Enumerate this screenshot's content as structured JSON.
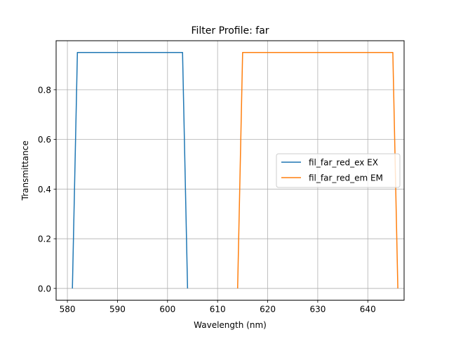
{
  "chart_data": {
    "type": "line",
    "title": "Filter Profile: far",
    "xlabel": "Wavelength (nm)",
    "ylabel": "Transmittance",
    "xlim": [
      577.75,
      647.25
    ],
    "ylim": [
      -0.0475,
      0.9975
    ],
    "xticks": [
      580,
      590,
      600,
      610,
      620,
      630,
      640
    ],
    "xtick_labels": [
      "580",
      "590",
      "600",
      "610",
      "620",
      "630",
      "640"
    ],
    "yticks": [
      0.0,
      0.2,
      0.4,
      0.6,
      0.8
    ],
    "ytick_labels": [
      "0.0",
      "0.2",
      "0.4",
      "0.6",
      "0.8"
    ],
    "grid": true,
    "legend_position": "center-right",
    "series": [
      {
        "name": "fil_far_red_ex EX",
        "color": "#1f77b4",
        "x": [
          581,
          582,
          603,
          604
        ],
        "y": [
          0.0,
          0.95,
          0.95,
          0.0
        ]
      },
      {
        "name": "fil_far_red_em EM",
        "color": "#ff7f0e",
        "x": [
          614,
          615,
          645,
          646
        ],
        "y": [
          0.0,
          0.95,
          0.95,
          0.0
        ]
      }
    ]
  }
}
